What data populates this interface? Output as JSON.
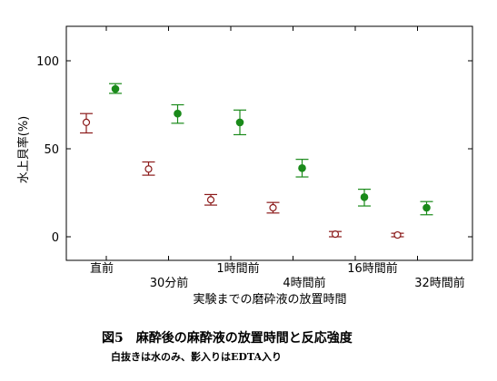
{
  "chart_data": {
    "type": "scatter",
    "ylabel": "水上貝率(%)",
    "xlabel": "実験までの磨砕液の放置時間",
    "ylim": [
      -15,
      120
    ],
    "yticks": [
      0,
      50,
      100
    ],
    "categories": [
      "直前",
      "30分前",
      "1時間前",
      "4時間前",
      "16時間前",
      "32時間前"
    ],
    "series": [
      {
        "marker": "open-circle",
        "color": "#8b1a1a",
        "values": [
          65,
          38.5,
          21,
          16.5,
          1.5,
          1
        ],
        "err_low": [
          59,
          35,
          18,
          13.5,
          0,
          0
        ],
        "err_high": [
          70,
          42.5,
          24,
          19.5,
          3,
          2
        ]
      },
      {
        "marker": "filled-circle",
        "color": "#1a8a1a",
        "values": [
          84,
          70,
          65,
          39,
          22.5,
          16.5
        ],
        "err_low": [
          81.5,
          64.5,
          58,
          34,
          17.5,
          12.5
        ],
        "err_high": [
          87,
          75,
          72,
          44,
          27,
          20
        ]
      }
    ]
  },
  "caption": {
    "title": "図5　麻酔後の麻酔液の放置時間と反応強度",
    "subtitle": "白抜きは水のみ、影入りはEDTA入り"
  }
}
